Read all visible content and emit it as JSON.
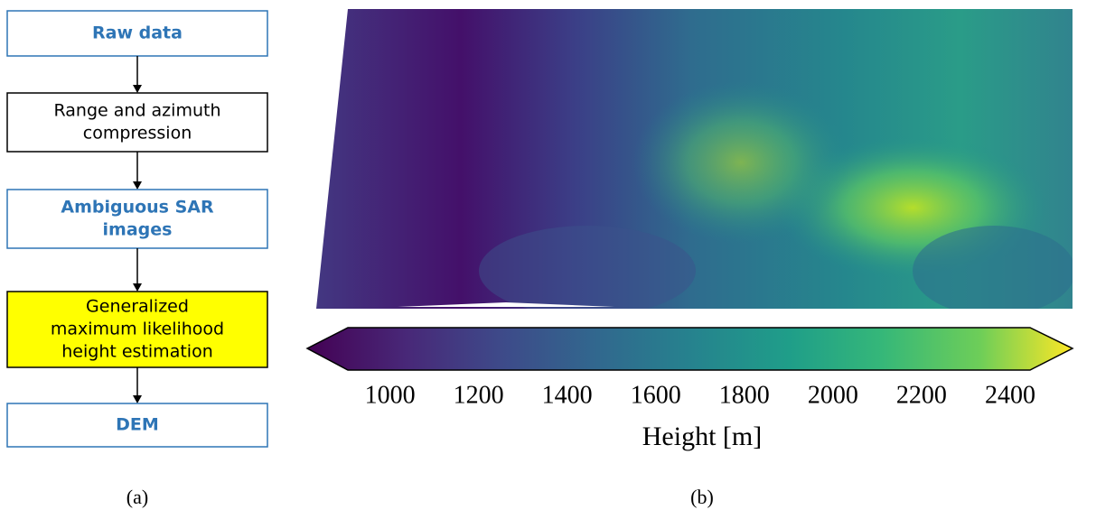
{
  "flowchart": {
    "nodes": [
      {
        "lines": [
          "Raw data"
        ]
      },
      {
        "lines": [
          "Range and azimuth",
          "compression"
        ]
      },
      {
        "lines": [
          "Ambiguous SAR",
          "images"
        ]
      },
      {
        "lines": [
          "Generalized",
          "maximum likelihood",
          "height estimation"
        ]
      },
      {
        "lines": [
          "DEM"
        ]
      }
    ],
    "caption": "(a)"
  },
  "map": {
    "caption": "(b)",
    "colorbar": {
      "label": "Height [m]",
      "lim": [
        905,
        2445
      ],
      "ticks": [
        1000,
        1200,
        1400,
        1600,
        1800,
        2000,
        2200,
        2400
      ]
    }
  }
}
